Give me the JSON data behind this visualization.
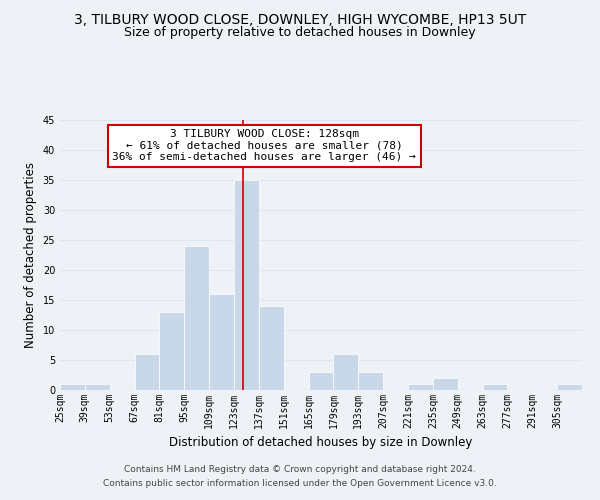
{
  "title": "3, TILBURY WOOD CLOSE, DOWNLEY, HIGH WYCOMBE, HP13 5UT",
  "subtitle": "Size of property relative to detached houses in Downley",
  "xlabel": "Distribution of detached houses by size in Downley",
  "ylabel": "Number of detached properties",
  "bin_labels": [
    "25sqm",
    "39sqm",
    "53sqm",
    "67sqm",
    "81sqm",
    "95sqm",
    "109sqm",
    "123sqm",
    "137sqm",
    "151sqm",
    "165sqm",
    "179sqm",
    "193sqm",
    "207sqm",
    "221sqm",
    "235sqm",
    "249sqm",
    "263sqm",
    "277sqm",
    "291sqm",
    "305sqm"
  ],
  "bin_edges": [
    25,
    39,
    53,
    67,
    81,
    95,
    109,
    123,
    137,
    151,
    165,
    179,
    193,
    207,
    221,
    235,
    249,
    263,
    277,
    291,
    305
  ],
  "bar_heights": [
    1,
    1,
    0,
    6,
    13,
    24,
    16,
    35,
    14,
    0,
    3,
    6,
    3,
    0,
    1,
    2,
    0,
    1,
    0,
    0,
    1
  ],
  "bar_color": "#c8d8e8",
  "bar_edge_color": "#ffffff",
  "grid_color": "#dce8f0",
  "ref_line_x": 128,
  "ref_line_color": "#cc0000",
  "annotation_text": "3 TILBURY WOOD CLOSE: 128sqm\n← 61% of detached houses are smaller (78)\n36% of semi-detached houses are larger (46) →",
  "annotation_box_color": "#ffffff",
  "annotation_box_edge": "#cc0000",
  "ylim": [
    0,
    45
  ],
  "yticks": [
    0,
    5,
    10,
    15,
    20,
    25,
    30,
    35,
    40,
    45
  ],
  "footer_text": "Contains HM Land Registry data © Crown copyright and database right 2024.\nContains public sector information licensed under the Open Government Licence v3.0.",
  "bg_color": "#eef2f7",
  "plot_bg_color": "#eef2f7",
  "title_fontsize": 10,
  "subtitle_fontsize": 9,
  "axis_label_fontsize": 8.5,
  "tick_fontsize": 7,
  "annotation_fontsize": 8,
  "footer_fontsize": 6.5
}
